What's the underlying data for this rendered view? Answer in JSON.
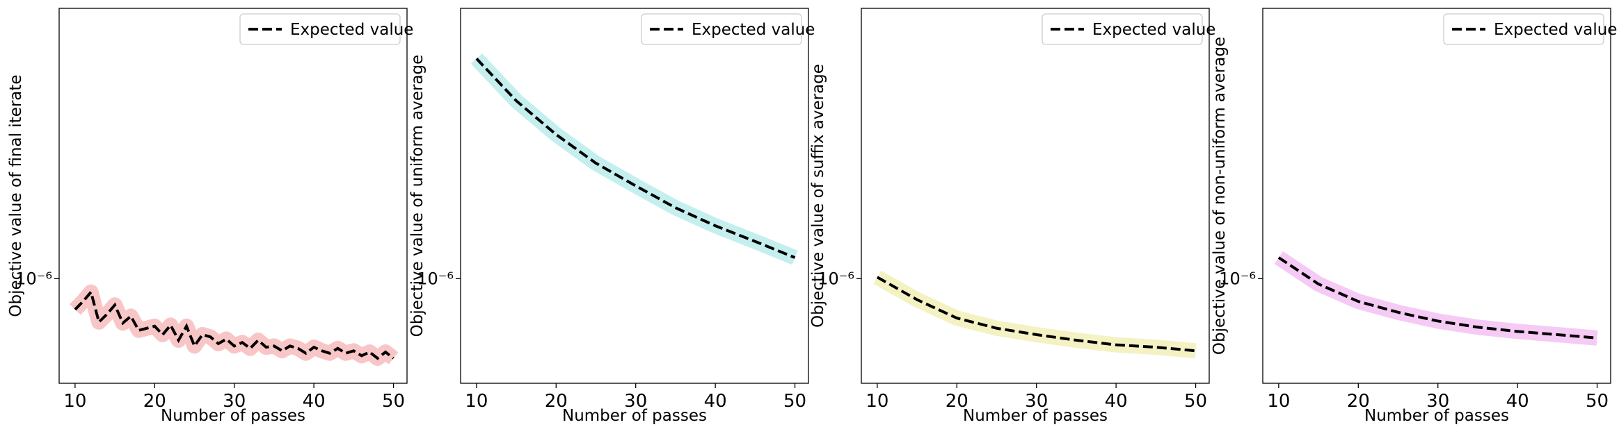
{
  "chart_data": [
    {
      "type": "line",
      "x_label": "Number of passes",
      "y_label": "Objective value of final iterate",
      "x": [
        10,
        11,
        12,
        13,
        14,
        15,
        16,
        17,
        18,
        19,
        20,
        21,
        22,
        23,
        24,
        25,
        26,
        27,
        28,
        29,
        30,
        31,
        32,
        33,
        34,
        35,
        36,
        37,
        38,
        39,
        40,
        41,
        42,
        43,
        44,
        45,
        46,
        47,
        48,
        49,
        50
      ],
      "series": [
        {
          "name": "Expected value",
          "color": "#000000",
          "band_color": "#f08080",
          "values": [
            8.15e-07,
            8.6e-07,
            9.15e-07,
            7.5e-07,
            7.9e-07,
            8.4e-07,
            7.45e-07,
            7.8e-07,
            7.1e-07,
            7.2e-07,
            7.3e-07,
            6.9e-07,
            7.35e-07,
            6.65e-07,
            7.3e-07,
            6.4e-07,
            6.9e-07,
            6.8e-07,
            6.5e-07,
            6.7e-07,
            6.4e-07,
            6.55e-07,
            6.3e-07,
            6.65e-07,
            6.35e-07,
            6.4e-07,
            6.2e-07,
            6.4e-07,
            6.3e-07,
            6.1e-07,
            6.35e-07,
            6.2e-07,
            6.1e-07,
            6.3e-07,
            6.1e-07,
            6.2e-07,
            6e-07,
            6.15e-07,
            5.9e-07,
            6.15e-07,
            5.9e-07
          ]
        }
      ],
      "xlim": [
        8,
        51.7
      ],
      "xticks": [
        10,
        20,
        30,
        40,
        50
      ],
      "ylim": [
        5e-07,
        6e-06
      ],
      "yticks": [
        {
          "value": 1e-06,
          "label": "10⁻⁶"
        }
      ],
      "log_y": true,
      "legend": "upper right"
    },
    {
      "type": "line",
      "x_label": "Number of passes",
      "y_label": "Objective value of uniform average",
      "x": [
        10,
        15,
        20,
        25,
        30,
        35,
        40,
        45,
        50
      ],
      "series": [
        {
          "name": "Expected value",
          "color": "#000000",
          "band_color": "#7fdbdb",
          "values": [
            4.3e-06,
            3.25e-06,
            2.6e-06,
            2.15e-06,
            1.85e-06,
            1.6e-06,
            1.42e-06,
            1.28e-06,
            1.15e-06
          ]
        }
      ],
      "xlim": [
        8,
        51.7
      ],
      "xticks": [
        10,
        20,
        30,
        40,
        50
      ],
      "ylim": [
        5e-07,
        6e-06
      ],
      "yticks": [
        {
          "value": 1e-06,
          "label": "10⁻⁶"
        }
      ],
      "log_y": true,
      "legend": "upper right"
    },
    {
      "type": "line",
      "x_label": "Number of passes",
      "y_label": "Objective value of suffix average",
      "x": [
        10,
        15,
        20,
        25,
        30,
        35,
        40,
        45,
        50
      ],
      "series": [
        {
          "name": "Expected value",
          "color": "#000000",
          "band_color": "#e6e27a",
          "values": [
            1.01e-06,
            8.7e-07,
            7.7e-07,
            7.2e-07,
            6.9e-07,
            6.65e-07,
            6.45e-07,
            6.35e-07,
            6.2e-07
          ]
        }
      ],
      "xlim": [
        8,
        51.7
      ],
      "xticks": [
        10,
        20,
        30,
        40,
        50
      ],
      "ylim": [
        5e-07,
        6e-06
      ],
      "yticks": [
        {
          "value": 1e-06,
          "label": "10⁻⁶"
        }
      ],
      "log_y": true,
      "legend": "upper right"
    },
    {
      "type": "line",
      "x_label": "Number of passes",
      "y_label": "Objective value of non-uniform average",
      "x": [
        10,
        15,
        20,
        25,
        30,
        35,
        40,
        45,
        50
      ],
      "series": [
        {
          "name": "Expected value",
          "color": "#000000",
          "band_color": "#e88ae8",
          "values": [
            1.15e-06,
            9.65e-07,
            8.6e-07,
            8e-07,
            7.55e-07,
            7.25e-07,
            7.05e-07,
            6.9e-07,
            6.75e-07
          ]
        }
      ],
      "xlim": [
        8,
        51.7
      ],
      "xticks": [
        10,
        20,
        30,
        40,
        50
      ],
      "ylim": [
        5e-07,
        6e-06
      ],
      "yticks": [
        {
          "value": 1e-06,
          "label": "10⁻⁶"
        }
      ],
      "log_y": true,
      "legend": "upper right"
    }
  ]
}
